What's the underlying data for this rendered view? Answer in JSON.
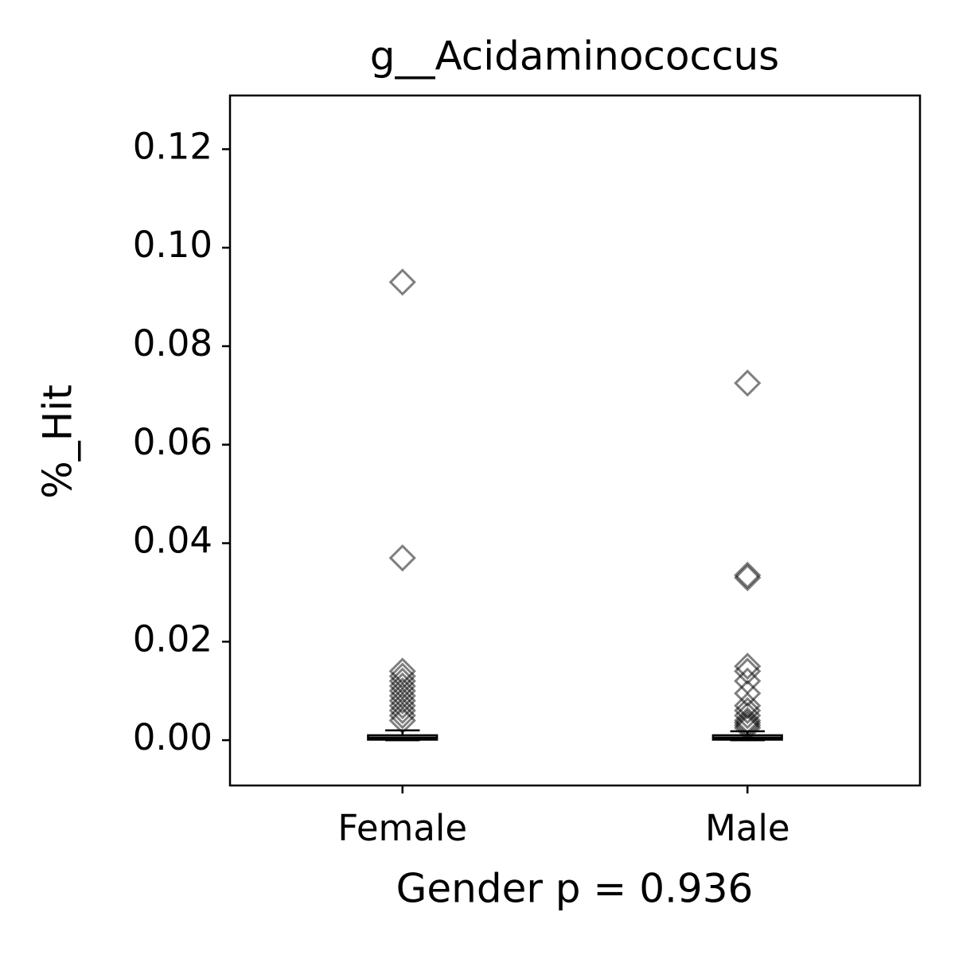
{
  "chart_data": {
    "type": "box",
    "title": "g__Acidaminococcus",
    "xlabel": "Gender p = 0.936",
    "ylabel": "%_Hit",
    "categories": [
      "Female",
      "Male"
    ],
    "boxes": [
      {
        "whislo": 0.0,
        "q1": 0.0001,
        "median": 0.0005,
        "q3": 0.001,
        "whishi": 0.002,
        "fliers": [
          0.093,
          0.037,
          0.014,
          0.013,
          0.012,
          0.011,
          0.01,
          0.009,
          0.008,
          0.007,
          0.006,
          0.005,
          0.004
        ]
      },
      {
        "whislo": 0.0,
        "q1": 0.0001,
        "median": 0.0005,
        "q3": 0.001,
        "whishi": 0.0018,
        "fliers": [
          0.0725,
          0.0335,
          0.033,
          0.015,
          0.014,
          0.012,
          0.0095,
          0.007,
          0.006,
          0.005,
          0.004,
          0.0035,
          0.003,
          0.0025
        ]
      }
    ],
    "color": "#000000",
    "ylim": [
      -0.0092,
      0.1309
    ],
    "yticks": [
      {
        "value": 0,
        "label": "0.00"
      },
      0.02,
      0.04,
      0.06,
      0.08,
      {
        "value": 0.1,
        "label": "0.10"
      },
      0.12
    ],
    "grid": false
  }
}
